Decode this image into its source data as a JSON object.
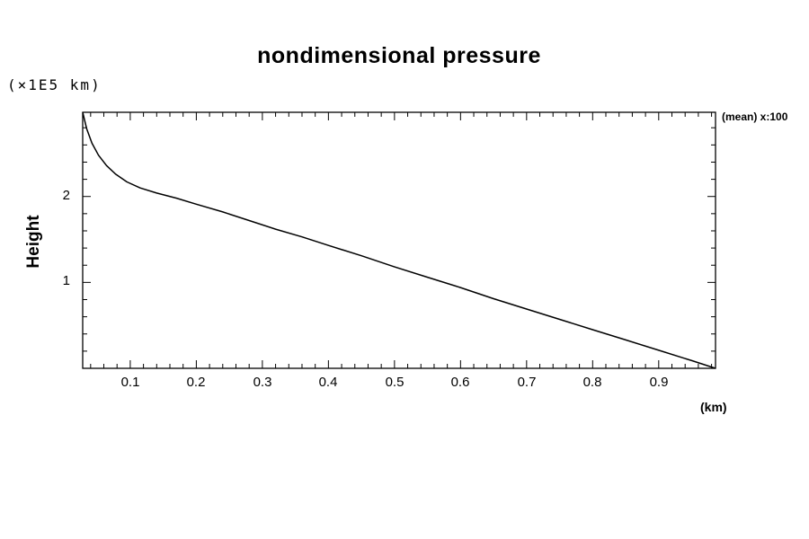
{
  "title": "nondimensional pressure",
  "left_unit_label": "(×1E5 km)",
  "ylabel": "Height",
  "x_unit_label": "(km)",
  "annotation": "(mean) x:100",
  "chart_data": {
    "type": "line",
    "title": "nondimensional pressure",
    "xlabel": "(km)",
    "ylabel": "Height (×1E5 km)",
    "annotation": "(mean) x:100",
    "grid": false,
    "legend": "none",
    "line_color": "#000000",
    "frame_color": "#000000",
    "x_range": [
      0.028,
      0.986
    ],
    "y_range": [
      0,
      2.98
    ],
    "x_major_ticks": [
      0.1,
      0.2,
      0.3,
      0.4,
      0.5,
      0.6,
      0.7,
      0.8,
      0.9
    ],
    "x_minor_step": 0.02,
    "y_major_ticks": [
      1,
      2
    ],
    "y_minor_step": 0.2,
    "series": [
      {
        "name": "nondimensional pressure (mean)",
        "color": "#000000",
        "x": [
          0.028,
          0.034,
          0.042,
          0.052,
          0.064,
          0.078,
          0.095,
          0.115,
          0.14,
          0.17,
          0.2,
          0.24,
          0.28,
          0.32,
          0.36,
          0.4,
          0.45,
          0.5,
          0.55,
          0.6,
          0.65,
          0.7,
          0.75,
          0.8,
          0.85,
          0.9,
          0.95,
          0.986
        ],
        "y": [
          2.98,
          2.79,
          2.62,
          2.48,
          2.36,
          2.26,
          2.17,
          2.1,
          2.04,
          1.98,
          1.91,
          1.82,
          1.72,
          1.62,
          1.53,
          1.43,
          1.31,
          1.18,
          1.06,
          0.94,
          0.81,
          0.69,
          0.57,
          0.45,
          0.33,
          0.21,
          0.09,
          0.0
        ]
      }
    ]
  }
}
